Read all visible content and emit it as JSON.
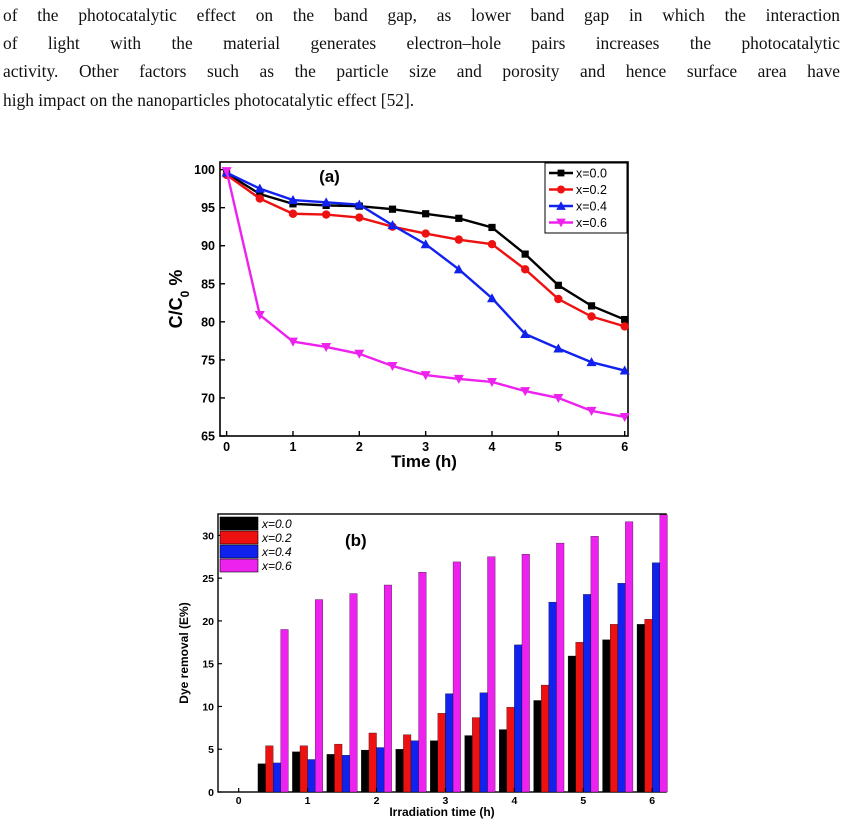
{
  "paragraph": {
    "lines": [
      "of the photocatalytic effect on the band gap, as lower band gap in which the interaction",
      "of light with the material generates electron–hole pairs increases the photocatalytic",
      "activity. Other factors such as the particle size and porosity and hence surface area have",
      "high impact on the nanoparticles photocatalytic effect [52]."
    ]
  },
  "chart_data": [
    {
      "type": "line",
      "panel_label": "(a)",
      "xlabel": "Time (h)",
      "ylabel": "C/C0 %",
      "ylabel_main": "C/C",
      "ylabel_sub": "0",
      "ylabel_suffix": " %",
      "xlim": [
        -0.1,
        6.05
      ],
      "ylim": [
        65,
        101
      ],
      "xticks": [
        0,
        1,
        2,
        3,
        4,
        5,
        6
      ],
      "yticks": [
        65,
        70,
        75,
        80,
        85,
        90,
        95,
        100
      ],
      "x": [
        0,
        0.5,
        1,
        1.5,
        2,
        2.5,
        3,
        3.5,
        4,
        4.5,
        5,
        5.5,
        6
      ],
      "legend_position": "top-right",
      "series": [
        {
          "name": "x=0.0",
          "color": "#000000",
          "marker": "square",
          "values": [
            99.5,
            96.8,
            95.5,
            95.3,
            95.2,
            94.8,
            94.2,
            93.6,
            92.4,
            88.9,
            84.8,
            82.1,
            80.3
          ]
        },
        {
          "name": "x=0.2",
          "color": "#ee1111",
          "marker": "circle",
          "values": [
            99.3,
            96.2,
            94.2,
            94.1,
            93.7,
            92.5,
            91.6,
            90.8,
            90.2,
            86.9,
            83.0,
            80.7,
            79.4
          ]
        },
        {
          "name": "x=0.4",
          "color": "#1122ee",
          "marker": "triangle-up",
          "values": [
            99.6,
            97.5,
            96.0,
            95.7,
            95.4,
            92.7,
            90.2,
            86.9,
            83.1,
            78.4,
            76.5,
            74.7,
            73.6
          ]
        },
        {
          "name": "x=0.6",
          "color": "#ee22ee",
          "marker": "triangle-down",
          "values": [
            99.8,
            80.9,
            77.4,
            76.7,
            75.8,
            74.2,
            73.0,
            72.5,
            72.1,
            70.9,
            70.0,
            68.3,
            67.5
          ]
        }
      ]
    },
    {
      "type": "bar",
      "panel_label": "(b)",
      "xlabel": "Irradiation time (h)",
      "ylabel": "Dye removal (E%)",
      "xlim": [
        -0.3,
        6.2
      ],
      "ylim": [
        0,
        32.5
      ],
      "xticks": [
        0,
        1,
        2,
        3,
        4,
        5,
        6
      ],
      "yticks": [
        0,
        5,
        10,
        15,
        20,
        25,
        30
      ],
      "x": [
        0,
        0.5,
        1,
        1.5,
        2,
        2.5,
        3,
        3.5,
        4,
        4.5,
        5,
        5.5,
        6
      ],
      "legend_position": "top-left",
      "series": [
        {
          "name": "x=0.0",
          "color": "#000000",
          "values": [
            0,
            3.3,
            4.7,
            4.4,
            4.9,
            5.0,
            6.0,
            6.6,
            7.3,
            10.7,
            15.9,
            17.8,
            19.6
          ]
        },
        {
          "name": "x=0.2",
          "color": "#ee1111",
          "values": [
            0,
            5.4,
            5.4,
            5.6,
            6.9,
            6.7,
            9.2,
            8.7,
            9.9,
            12.5,
            17.5,
            19.6,
            20.2
          ]
        },
        {
          "name": "x=0.4",
          "color": "#1122ee",
          "values": [
            0,
            3.4,
            3.8,
            4.3,
            5.2,
            6.0,
            11.5,
            11.6,
            17.2,
            22.2,
            23.1,
            24.4,
            26.8
          ]
        },
        {
          "name": "x=0.6",
          "color": "#ee22ee",
          "values": [
            0,
            19.0,
            22.5,
            23.2,
            24.2,
            25.7,
            26.9,
            27.5,
            27.8,
            29.1,
            29.9,
            31.6,
            32.4
          ]
        }
      ]
    }
  ]
}
